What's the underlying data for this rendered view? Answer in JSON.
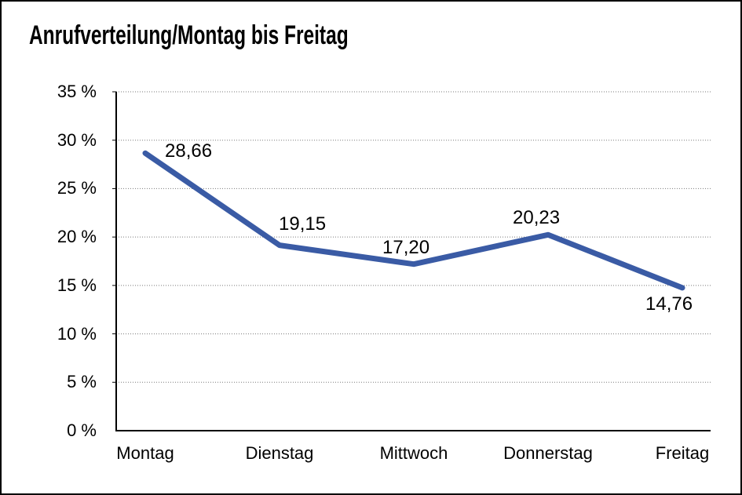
{
  "title": "Anrufverteilung/Montag bis Freitag",
  "chart_data": {
    "type": "line",
    "title": "Anrufverteilung/Montag bis Freitag",
    "categories": [
      "Montag",
      "Dienstag",
      "Mittwoch",
      "Donnerstag",
      "Freitag"
    ],
    "values": [
      28.66,
      19.15,
      17.2,
      20.23,
      14.76
    ],
    "value_labels": [
      "28,66",
      "19,15",
      "17,20",
      "20,23",
      "14,76"
    ],
    "y_tick_labels": [
      "0 %",
      "5 %",
      "10 %",
      "15 %",
      "20 %",
      "25 %",
      "30 %",
      "35 %"
    ],
    "ylim": [
      0,
      35
    ],
    "y_tick_step": 5,
    "xlabel": "",
    "ylabel": "",
    "grid": "horizontal-dotted",
    "legend": "none"
  },
  "colors": {
    "line": "#3A5BA5",
    "grid": "#7A7A7A",
    "axis": "#000000",
    "text": "#000000",
    "background": "#FFFFFF",
    "border": "#000000"
  }
}
